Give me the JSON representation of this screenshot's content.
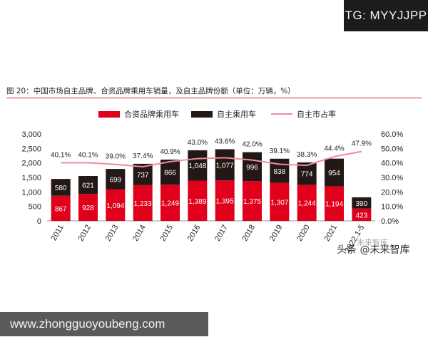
{
  "badge": {
    "text": "TG: MYYJJPP"
  },
  "caption": "图 20：中国市场自主品牌、合资品牌乘用车销量，及自主品牌份额（单位：万辆，%）",
  "watermark": {
    "text": "头条 @未来智库",
    "faint_text": "未来智库"
  },
  "site_bar": {
    "text": "www.zhongguoyoubeng.com"
  },
  "colors": {
    "jv": "#e0001b",
    "own": "#231815",
    "share": "#f08aa0",
    "accent_rule": "#c9302c"
  },
  "chart_data": {
    "type": "bar",
    "stacked": true,
    "categories": [
      "2011",
      "2012",
      "2013",
      "2014",
      "2015",
      "2016",
      "2017",
      "2018",
      "2019",
      "2020",
      "2021",
      "2022.1-5"
    ],
    "series": [
      {
        "name": "合资品牌乘用车",
        "values": [
          867,
          928,
          1094,
          1233,
          1249,
          1389,
          1395,
          1375,
          1307,
          1244,
          1194,
          423
        ],
        "labels": [
          "867",
          "928",
          "1,094",
          "1,233",
          "1,249",
          "1,389",
          "1,395",
          "1,375",
          "1,307",
          "1,244",
          "1,194",
          "423"
        ]
      },
      {
        "name": "自主乘用车",
        "values": [
          580,
          621,
          699,
          737,
          866,
          1048,
          1077,
          996,
          838,
          774,
          954,
          390
        ],
        "labels": [
          "580",
          "621",
          "699",
          "737",
          "866",
          "1,048",
          "1,077",
          "996",
          "838",
          "774",
          "954",
          "390"
        ]
      }
    ],
    "line_series": {
      "name": "自主市占率",
      "axis": "right",
      "values": [
        40.1,
        40.1,
        39.0,
        37.4,
        40.9,
        43.0,
        43.6,
        42.0,
        39.1,
        38.3,
        44.4,
        47.9
      ],
      "labels": [
        "40.1%",
        "40.1%",
        "39.0%",
        "37.4%",
        "40.9%",
        "43.0%",
        "43.6%",
        "42.0%",
        "39.1%",
        "38.3%",
        "44.4%",
        "47.9%"
      ]
    },
    "y_left": {
      "min": 0,
      "max": 3000,
      "ticks": [
        "0",
        "500",
        "1,000",
        "1,500",
        "2,000",
        "2,500",
        "3,000"
      ]
    },
    "y_right": {
      "min": 0,
      "max": 60,
      "ticks": [
        "0.0%",
        "10.0%",
        "20.0%",
        "30.0%",
        "40.0%",
        "50.0%",
        "60.0%"
      ]
    },
    "legend_position": "top"
  }
}
